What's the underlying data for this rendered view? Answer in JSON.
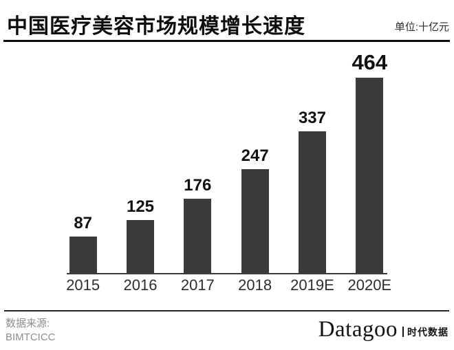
{
  "header": {
    "title": "中国医疗美容市场规模增长速度",
    "unit_label": "单位:十亿元"
  },
  "chart_data": {
    "type": "bar",
    "title": "中国医疗美容市场规模增长速度",
    "unit": "十亿元",
    "categories": [
      "2015",
      "2016",
      "2017",
      "2018",
      "2019E",
      "2020E"
    ],
    "values": [
      87,
      125,
      176,
      247,
      337,
      464
    ],
    "ylim": [
      0,
      464
    ],
    "xlabel": "",
    "ylabel": "",
    "grid": false,
    "legend": false,
    "bar_color": "#3a3a3a",
    "value_labels_shown": true,
    "max_value_emphasized": true
  },
  "footer": {
    "source_label": "数据来源:",
    "source_name": "BIMTCICC",
    "brand": "Datagoo",
    "brand_suffix": "时代数据"
  }
}
